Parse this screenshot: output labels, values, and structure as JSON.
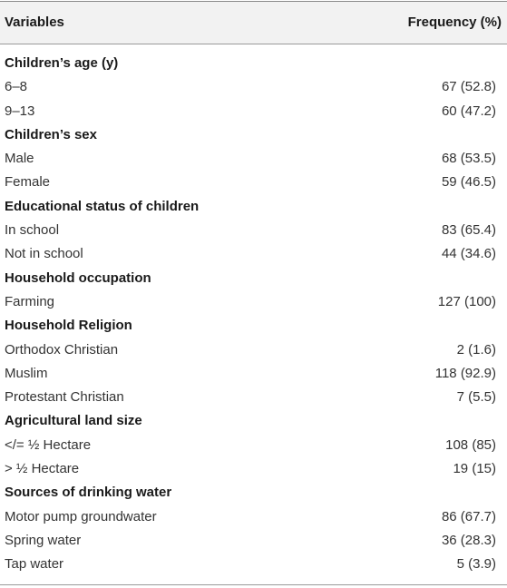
{
  "header": {
    "variables": "Variables",
    "frequency": "Frequency (%)"
  },
  "rows": [
    {
      "type": "section",
      "label": "Children’s age (y)",
      "value": ""
    },
    {
      "type": "item",
      "label": "6–8",
      "value": "67 (52.8)"
    },
    {
      "type": "item",
      "label": "9–13",
      "value": "60 (47.2)"
    },
    {
      "type": "section",
      "label": "Children’s sex",
      "value": ""
    },
    {
      "type": "item",
      "label": "Male",
      "value": "68 (53.5)"
    },
    {
      "type": "item",
      "label": "Female",
      "value": "59 (46.5)"
    },
    {
      "type": "section",
      "label": "Educational status of children",
      "value": ""
    },
    {
      "type": "item",
      "label": "In school",
      "value": "83 (65.4)"
    },
    {
      "type": "item",
      "label": "Not in school",
      "value": "44 (34.6)"
    },
    {
      "type": "section",
      "label": "Household occupation",
      "value": ""
    },
    {
      "type": "item",
      "label": "Farming",
      "value": "127 (100)"
    },
    {
      "type": "section",
      "label": "Household Religion",
      "value": ""
    },
    {
      "type": "item",
      "label": "Orthodox Christian",
      "value": "2 (1.6)"
    },
    {
      "type": "item",
      "label": "Muslim",
      "value": "118 (92.9)"
    },
    {
      "type": "item",
      "label": "Protestant Christian",
      "value": "7 (5.5)"
    },
    {
      "type": "section",
      "label": "Agricultural land size",
      "value": ""
    },
    {
      "type": "item",
      "label": "</= ½ Hectare",
      "value": "108 (85)"
    },
    {
      "type": "item",
      "label": "> ½ Hectare",
      "value": "19 (15)"
    },
    {
      "type": "section",
      "label": "Sources of drinking water",
      "value": ""
    },
    {
      "type": "item",
      "label": "Motor pump groundwater",
      "value": "86 (67.7)"
    },
    {
      "type": "item",
      "label": "Spring water",
      "value": "36 (28.3)"
    },
    {
      "type": "item",
      "label": "Tap water",
      "value": "5 (3.9)"
    }
  ]
}
